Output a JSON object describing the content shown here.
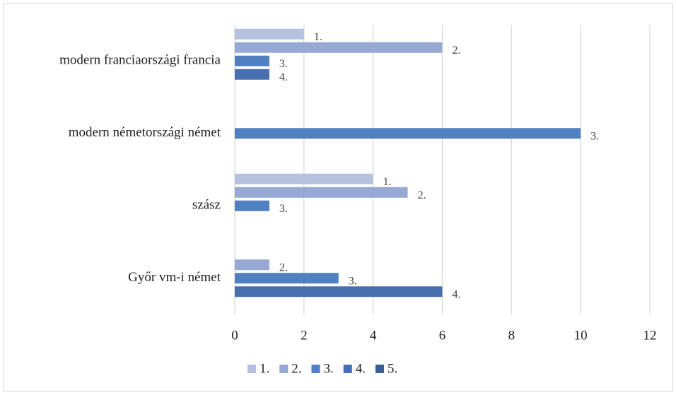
{
  "chart_data": {
    "type": "bar",
    "orientation": "horizontal",
    "categories": [
      "modern franciaországi francia",
      "modern németországi német",
      "szász",
      "Győr vm-i német"
    ],
    "series": [
      {
        "name": "1.",
        "color": "#b4c2e0",
        "values": [
          2,
          null,
          4,
          null
        ]
      },
      {
        "name": "2.",
        "color": "#95a9d4",
        "values": [
          6,
          null,
          5,
          1
        ]
      },
      {
        "name": "3.",
        "color": "#4f80c1",
        "values": [
          1,
          10,
          1,
          3
        ]
      },
      {
        "name": "4.",
        "color": "#4870ae",
        "values": [
          1,
          null,
          null,
          6
        ]
      },
      {
        "name": "5.",
        "color": "#3b5e95",
        "values": [
          null,
          null,
          null,
          null
        ]
      }
    ],
    "xlim": [
      0,
      12
    ],
    "xticks": [
      0,
      2,
      4,
      6,
      8,
      10,
      12
    ],
    "grid": true,
    "legend": "bottom"
  }
}
